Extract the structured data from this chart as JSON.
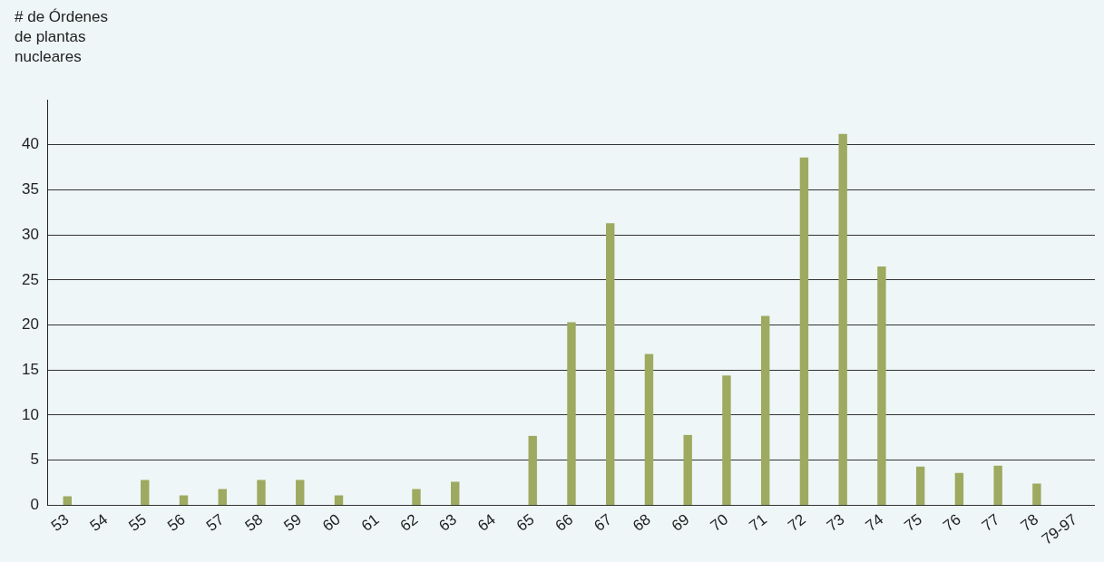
{
  "chart_data": {
    "type": "bar",
    "ylabel": "# de Órdenes de plantas nucleares",
    "categories": [
      "53",
      "54",
      "55",
      "56",
      "57",
      "58",
      "59",
      "60",
      "61",
      "62",
      "63",
      "64",
      "65",
      "66",
      "67",
      "68",
      "69",
      "70",
      "71",
      "72",
      "73",
      "74",
      "75",
      "76",
      "77",
      "78",
      "79-97"
    ],
    "values": [
      1,
      0,
      2.8,
      1.1,
      1.8,
      2.8,
      2.8,
      1.1,
      0,
      1.8,
      2.6,
      0,
      7.7,
      20.3,
      31.3,
      16.8,
      7.8,
      14.4,
      21,
      38.6,
      41.2,
      26.5,
      4.3,
      3.6,
      4.4,
      2.4,
      0
    ],
    "color": "#9daa5f",
    "ylim": [
      0,
      45
    ],
    "yticks": [
      0,
      5,
      10,
      15,
      20,
      25,
      30,
      35,
      40
    ],
    "grid": "y",
    "legend": false
  }
}
